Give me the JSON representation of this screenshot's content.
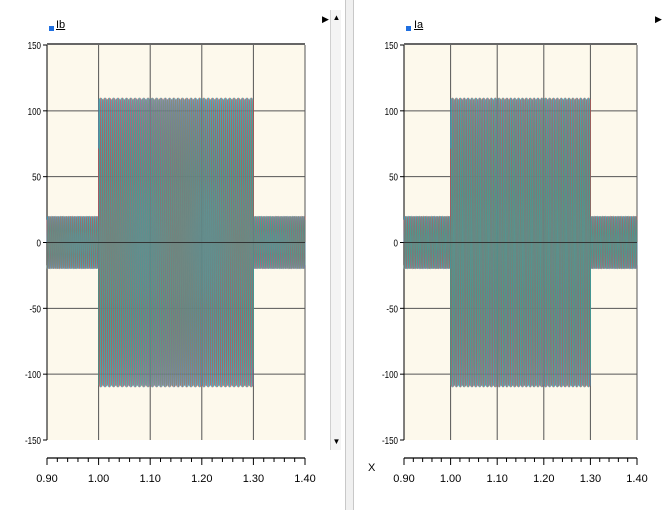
{
  "chart_data": [
    {
      "type": "line",
      "legend": [
        "Ib"
      ],
      "legend_placement": "top-left",
      "x_ticks": [
        "0.90",
        "1.00",
        "1.10",
        "1.20",
        "1.30",
        "1.40"
      ],
      "y_ticks": [
        "150",
        "100",
        "50",
        "0",
        "-50",
        "-100",
        "-150"
      ],
      "xlim": [
        0.9,
        1.4
      ],
      "ylim": [
        -150,
        150
      ],
      "grid": true,
      "series": [
        {
          "color": "#3a9ad9",
          "values": [
            {
              "x": 0.9,
              "y": 20
            },
            {
              "x": 1.0,
              "y": 20
            },
            {
              "x": 1.0,
              "y": 110
            },
            {
              "x": 1.3,
              "y": 110
            },
            {
              "x": 1.3,
              "y": 20
            },
            {
              "x": 1.4,
              "y": 20
            }
          ]
        },
        {
          "color": "#d24040",
          "values": [
            {
              "x": 0.9,
              "y": 20
            },
            {
              "x": 1.0,
              "y": 20
            },
            {
              "x": 1.0,
              "y": 110
            },
            {
              "x": 1.3,
              "y": 110
            },
            {
              "x": 1.3,
              "y": 20
            },
            {
              "x": 1.4,
              "y": 20
            }
          ]
        },
        {
          "color": "#3aa090",
          "values": [
            {
              "x": 0.9,
              "y": 20
            },
            {
              "x": 1.0,
              "y": 20
            },
            {
              "x": 1.0,
              "y": 110
            },
            {
              "x": 1.3,
              "y": 110
            },
            {
              "x": 1.3,
              "y": 20
            },
            {
              "x": 1.4,
              "y": 20
            }
          ]
        }
      ],
      "envelope": [
        {
          "x_from": 0.9,
          "x_to": 1.0,
          "amplitude": 20
        },
        {
          "x_from": 1.0,
          "x_to": 1.3,
          "amplitude": 110
        },
        {
          "x_from": 1.3,
          "x_to": 1.4,
          "amplitude": 20
        }
      ],
      "colors": {
        "plot_bg": "#fdf9ec",
        "grid": "#555555"
      }
    },
    {
      "type": "line",
      "legend": [
        "Ia"
      ],
      "legend_placement": "top-left",
      "x_axis_name": "X",
      "x_ticks": [
        "0.90",
        "1.00",
        "1.10",
        "1.20",
        "1.30",
        "1.40"
      ],
      "y_ticks": [
        "150",
        "100",
        "50",
        "0",
        "-50",
        "-100",
        "-150"
      ],
      "xlim": [
        0.9,
        1.4
      ],
      "ylim": [
        -150,
        150
      ],
      "grid": true,
      "series": [
        {
          "color": "#3a9ad9",
          "values": [
            {
              "x": 0.9,
              "y": 20
            },
            {
              "x": 1.0,
              "y": 20
            },
            {
              "x": 1.0,
              "y": 110
            },
            {
              "x": 1.3,
              "y": 110
            },
            {
              "x": 1.3,
              "y": 20
            },
            {
              "x": 1.4,
              "y": 20
            }
          ]
        },
        {
          "color": "#d24040",
          "values": [
            {
              "x": 0.9,
              "y": 20
            },
            {
              "x": 1.0,
              "y": 20
            },
            {
              "x": 1.0,
              "y": 110
            },
            {
              "x": 1.3,
              "y": 110
            },
            {
              "x": 1.3,
              "y": 20
            },
            {
              "x": 1.4,
              "y": 20
            }
          ]
        },
        {
          "color": "#3aa090",
          "values": [
            {
              "x": 0.9,
              "y": 20
            },
            {
              "x": 1.0,
              "y": 20
            },
            {
              "x": 1.0,
              "y": 110
            },
            {
              "x": 1.3,
              "y": 110
            },
            {
              "x": 1.3,
              "y": 20
            },
            {
              "x": 1.4,
              "y": 20
            }
          ]
        }
      ],
      "envelope": [
        {
          "x_from": 0.9,
          "x_to": 1.0,
          "amplitude": 20
        },
        {
          "x_from": 1.0,
          "x_to": 1.3,
          "amplitude": 110
        },
        {
          "x_from": 1.3,
          "x_to": 1.4,
          "amplitude": 20
        }
      ],
      "colors": {
        "plot_bg": "#fdf9ec",
        "grid": "#555555"
      }
    }
  ],
  "ui": {
    "scroll_up_glyph": "▲",
    "scroll_down_glyph": "▼",
    "side_arrow_glyph": "▶",
    "icons": [
      "scroll-up-icon",
      "scroll-down-icon",
      "expand-arrow-icon"
    ]
  }
}
